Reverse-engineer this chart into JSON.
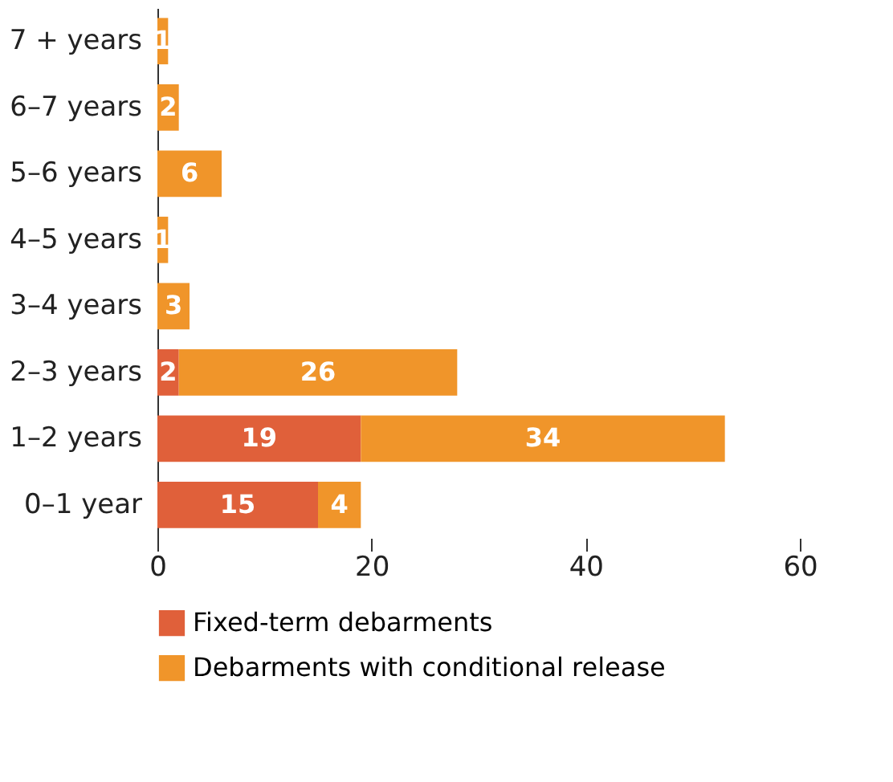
{
  "chart_data": {
    "type": "bar",
    "orientation": "horizontal",
    "stacked": true,
    "categories": [
      "7 + years",
      "6–7 years",
      "5–6 years",
      "4–5 years",
      "3–4 years",
      "2–3 years",
      "1–2 years",
      "0–1 year"
    ],
    "series": [
      {
        "name": "Fixed-term debarments",
        "color": "#e0603a",
        "values": [
          null,
          null,
          null,
          null,
          null,
          2,
          19,
          15
        ]
      },
      {
        "name": "Debarments with conditional release",
        "color": "#f0952a",
        "values": [
          1,
          2,
          6,
          1,
          3,
          26,
          34,
          4
        ]
      }
    ],
    "xlim": [
      0,
      60
    ],
    "xticks": [
      0,
      20,
      40,
      60
    ],
    "grid": false,
    "legend": "bottom left",
    "data_labels": true
  }
}
